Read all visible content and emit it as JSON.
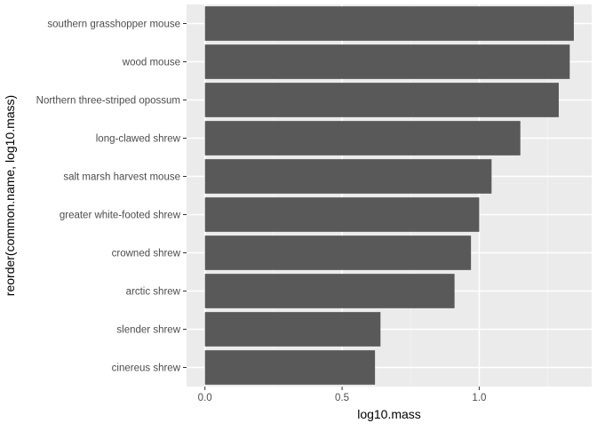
{
  "chart_data": {
    "type": "bar",
    "orientation": "horizontal",
    "categories": [
      "southern grasshopper mouse",
      "wood mouse",
      "Northern three-striped opossum",
      "long-clawed shrew",
      "salt marsh harvest mouse",
      "greater white-footed shrew",
      "crowned shrew",
      "arctic shrew",
      "slender shrew",
      "cinereus shrew"
    ],
    "values": [
      1.345,
      1.33,
      1.29,
      1.15,
      1.045,
      1.0,
      0.97,
      0.91,
      0.64,
      0.62
    ],
    "xlabel": "log10.mass",
    "ylabel": "reorder(common.name, log10.mass)",
    "xlim": [
      -0.067,
      1.41
    ],
    "xticks": [
      0.0,
      0.5,
      1.0
    ],
    "xtick_labels": [
      "0.0",
      "0.5",
      "1.0"
    ],
    "grid": true,
    "colors": {
      "bar": "#595959",
      "panel_background": "#ebebeb",
      "grid_major": "#ffffff",
      "grid_minor": "#f5f5f5"
    }
  }
}
